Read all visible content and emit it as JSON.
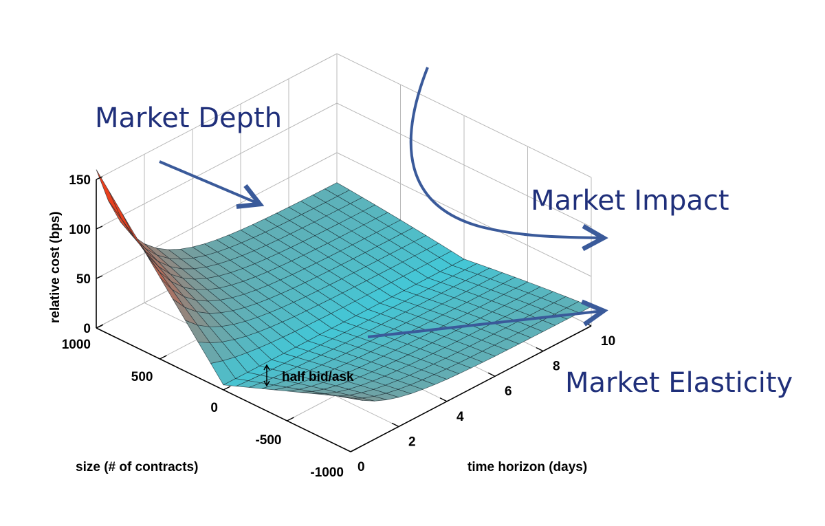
{
  "chart_data": {
    "type": "surface3d",
    "zlabel": "relative cost (bps)",
    "xlabel": "size (# of contracts)",
    "ylabel": "time horizon (days)",
    "zticks": [
      "0",
      "50",
      "100",
      "150"
    ],
    "xticks": [
      "1000",
      "500",
      "0",
      "-500",
      "-1000"
    ],
    "yticks": [
      "0",
      "2",
      "4",
      "6",
      "8",
      "10"
    ],
    "zlim": [
      0,
      150
    ],
    "xlim": [
      -1000,
      1000
    ],
    "ylim": [
      0,
      10
    ],
    "grid": true,
    "colormap": [
      "#42c8d8",
      "#e8401e"
    ],
    "surface": {
      "size_range": [
        -1000,
        1000
      ],
      "time_range": [
        0,
        10
      ],
      "half_spread_bps": 5,
      "depth_at_max_size_t0_bps": 160,
      "depth_at_min_size_t0_bps": 55,
      "long_horizon_bps": 20
    },
    "annotations": [
      {
        "name": "market-depth",
        "text": "Market Depth"
      },
      {
        "name": "market-impact",
        "text": "Market Impact"
      },
      {
        "name": "market-elasticity",
        "text": "Market Elasticity"
      },
      {
        "name": "half-bid-ask",
        "text": "half bid/ask"
      }
    ]
  },
  "colors": {
    "annotation": "#1f2f7a",
    "arrow": "#3a5a9a",
    "grid": "#b8b8b8",
    "axis": "#000000"
  }
}
